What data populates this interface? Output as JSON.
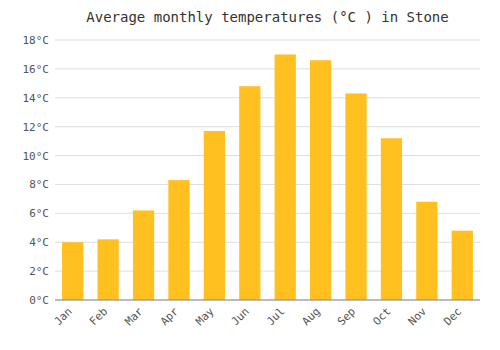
{
  "chart_data": {
    "type": "bar",
    "title": "Average monthly temperatures (°C ) in Stone",
    "categories": [
      "Jan",
      "Feb",
      "Mar",
      "Apr",
      "May",
      "Jun",
      "Jul",
      "Aug",
      "Sep",
      "Oct",
      "Nov",
      "Dec"
    ],
    "values": [
      4.0,
      4.2,
      6.2,
      8.3,
      11.7,
      14.8,
      17.0,
      16.6,
      14.3,
      11.2,
      6.8,
      4.8
    ],
    "color": "#FFC020",
    "ylim": [
      0,
      18
    ],
    "yticks": [
      {
        "value": 0,
        "label": "0°C"
      },
      {
        "value": 2,
        "label": "2°C"
      },
      {
        "value": 4,
        "label": "4°C"
      },
      {
        "value": 6,
        "label": "6°C"
      },
      {
        "value": 8,
        "label": "8°C"
      },
      {
        "value": 10,
        "label": "10°C"
      },
      {
        "value": 12,
        "label": "12°C"
      },
      {
        "value": 14,
        "label": "14°C"
      },
      {
        "value": 16,
        "label": "16°C"
      },
      {
        "value": 18,
        "label": "18°C"
      }
    ],
    "grid": true
  }
}
